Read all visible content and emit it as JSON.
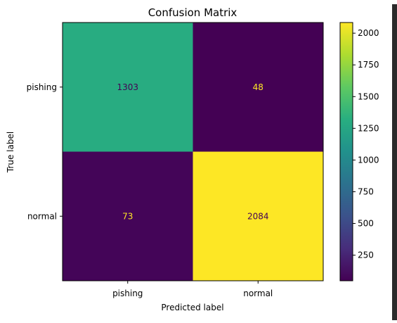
{
  "chart_data": {
    "type": "heatmap",
    "title": "Confusion Matrix",
    "xlabel": "Predicted label",
    "ylabel": "True label",
    "x_categories": [
      "pishing",
      "normal"
    ],
    "y_categories": [
      "pishing",
      "normal"
    ],
    "values": [
      [
        1303,
        48
      ],
      [
        73,
        2084
      ]
    ],
    "colormap": "viridis",
    "colorbar": {
      "ticks": [
        250,
        500,
        750,
        1000,
        1250,
        1500,
        1750,
        2000
      ],
      "range": [
        48,
        2084
      ]
    },
    "grid": false
  }
}
